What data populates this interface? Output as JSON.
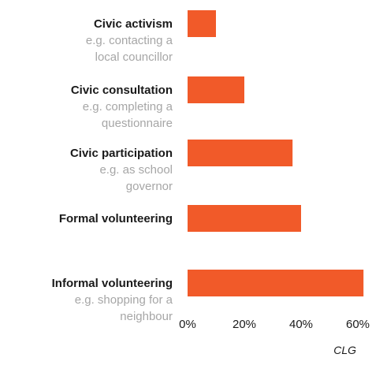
{
  "chart_data": {
    "type": "bar",
    "orientation": "horizontal",
    "categories": [
      {
        "label": "Civic activism",
        "sub": [
          "e.g. contacting a",
          "local councillor"
        ]
      },
      {
        "label": "Civic consultation",
        "sub": [
          "e.g. completing a",
          "questionnaire"
        ]
      },
      {
        "label": "Civic participation",
        "sub": [
          "e.g. as school",
          "governor"
        ]
      },
      {
        "label": "Formal volunteering",
        "sub": []
      },
      {
        "label": "Informal volunteering",
        "sub": [
          "e.g. shopping for a",
          "neighbour"
        ]
      }
    ],
    "values": [
      10,
      20,
      37,
      40,
      62
    ],
    "x_ticks": [
      "0%",
      "20%",
      "40%",
      "60%"
    ],
    "xlim": [
      0,
      65
    ],
    "bar_color": "#f15a29",
    "source": "CLG",
    "grid": false,
    "legend": "none"
  }
}
